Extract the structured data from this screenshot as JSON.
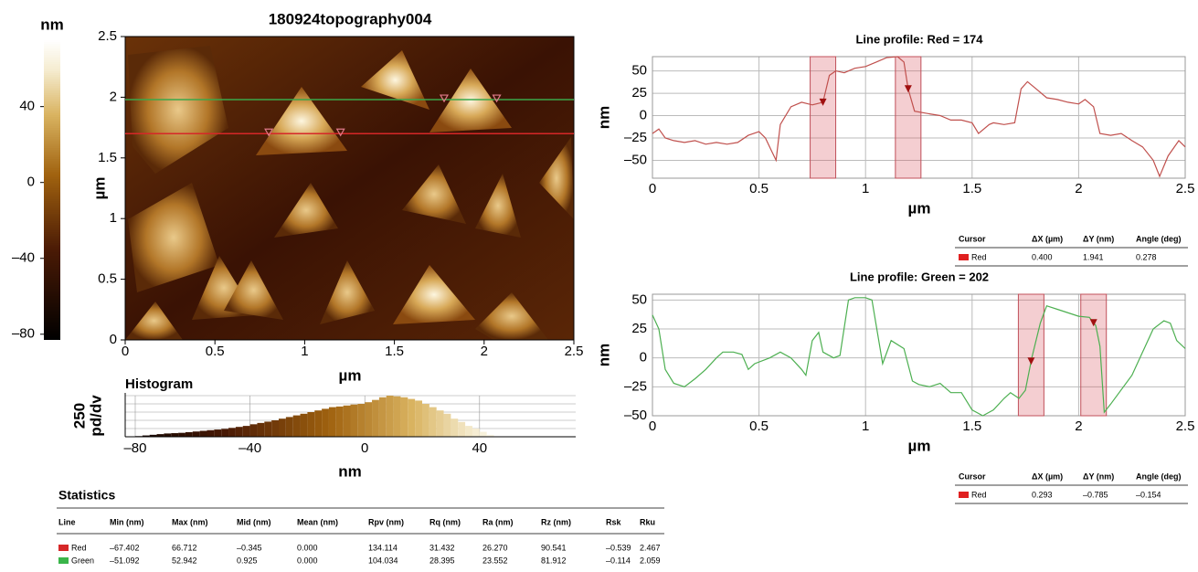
{
  "chart_data": [
    {
      "type": "image",
      "title": "180924topography004",
      "xlabel": "µm",
      "ylabel": "µm",
      "xlim": [
        0,
        2.5
      ],
      "ylim": [
        0,
        2.5
      ],
      "xticks": [
        0,
        0.5,
        1,
        1.5,
        2,
        2.5
      ],
      "yticks": [
        0,
        0.5,
        1,
        1.5,
        2,
        2.5
      ],
      "colorbar_label": "nm",
      "clim": [
        -83,
        75
      ],
      "colorbar_ticks": [
        {
          "value": 40,
          "label": "40"
        },
        0,
        {
          "value": -40,
          "label": "–40"
        },
        {
          "value": -80,
          "label": "–80"
        }
      ],
      "lines": [
        {
          "y": 1.98,
          "color": "#3aa84a"
        },
        {
          "y": 1.7,
          "color": "#d62728"
        }
      ]
    },
    {
      "type": "histogram",
      "title": "Histogram",
      "xlabel": "nm",
      "ylabel": [
        "250",
        "pd/dv"
      ],
      "xlim": [
        -83.5,
        73.5
      ],
      "ylim": [
        0,
        1250
      ],
      "yticks": [
        0,
        250,
        500,
        750,
        1000,
        1250
      ],
      "xticks": [
        {
          "value": -80,
          "label": "–80"
        },
        {
          "value": -40,
          "label": "–40"
        },
        0,
        40
      ],
      "bins": [
        -80,
        -77.5,
        -75,
        -72.5,
        -70,
        -67.5,
        -65,
        -62.5,
        -60,
        -57.5,
        -55,
        -52.5,
        -50,
        -47.5,
        -45,
        -42.5,
        -40,
        -37.5,
        -35,
        -32.5,
        -30,
        -27.5,
        -25,
        -22.5,
        -20,
        -17.5,
        -15,
        -12.5,
        -10,
        -7.5,
        -5,
        -2.5,
        0,
        2.5,
        5,
        7.5,
        10,
        12.5,
        15,
        17.5,
        20,
        22.5,
        25,
        27.5,
        30,
        32.5,
        35,
        37.5,
        40,
        42.5,
        45
      ],
      "values": [
        20,
        40,
        60,
        80,
        100,
        110,
        120,
        140,
        160,
        180,
        200,
        220,
        240,
        270,
        300,
        330,
        380,
        420,
        460,
        500,
        550,
        600,
        650,
        700,
        750,
        800,
        850,
        900,
        920,
        950,
        980,
        1000,
        1050,
        1120,
        1200,
        1250,
        1230,
        1200,
        1150,
        1100,
        1000,
        900,
        800,
        700,
        550,
        450,
        330,
        250,
        150,
        60
      ]
    },
    {
      "type": "line",
      "title": "Line profile: Red = 174",
      "xlabel": "µm",
      "ylabel": "nm",
      "color": "#c0504d",
      "xlim": [
        0,
        2.5
      ],
      "ylim": [
        -70,
        66
      ],
      "xticks": [
        0,
        0.5,
        1,
        1.5,
        2,
        2.5
      ],
      "yticks": [
        {
          "value": -50,
          "label": "–50"
        },
        {
          "value": -25,
          "label": "–25"
        },
        0,
        25,
        50
      ],
      "cursors": [
        0.8,
        1.2
      ],
      "cursor_width": 0.12,
      "grid": true,
      "x": [
        0,
        0.03,
        0.06,
        0.1,
        0.15,
        0.2,
        0.25,
        0.3,
        0.35,
        0.4,
        0.45,
        0.5,
        0.53,
        0.56,
        0.58,
        0.6,
        0.65,
        0.7,
        0.75,
        0.8,
        0.83,
        0.86,
        0.9,
        0.95,
        1.0,
        1.05,
        1.1,
        1.15,
        1.18,
        1.2,
        1.23,
        1.3,
        1.35,
        1.4,
        1.45,
        1.5,
        1.53,
        1.58,
        1.6,
        1.65,
        1.7,
        1.73,
        1.76,
        1.8,
        1.85,
        1.9,
        1.95,
        2.0,
        2.03,
        2.07,
        2.1,
        2.15,
        2.2,
        2.25,
        2.3,
        2.35,
        2.38,
        2.42,
        2.47,
        2.5
      ],
      "values": [
        -20,
        -15,
        -25,
        -28,
        -30,
        -28,
        -32,
        -30,
        -32,
        -30,
        -22,
        -18,
        -25,
        -40,
        -50,
        -10,
        10,
        15,
        12,
        15,
        45,
        50,
        48,
        53,
        55,
        60,
        65,
        66,
        60,
        30,
        5,
        2,
        0,
        -5,
        -5,
        -8,
        -20,
        -10,
        -8,
        -10,
        -8,
        30,
        38,
        30,
        20,
        18,
        15,
        13,
        18,
        10,
        -20,
        -22,
        -20,
        -28,
        -35,
        -50,
        -68,
        -45,
        -28,
        -35
      ],
      "cursor_table": {
        "header": [
          "Cursor",
          "ΔX (µm)",
          "ΔY (nm)",
          "Angle (deg)"
        ],
        "rows": [
          [
            "Red",
            "0.400",
            "1.941",
            "0.278"
          ]
        ]
      }
    },
    {
      "type": "line",
      "title": "Line profile: Green = 202",
      "xlabel": "µm",
      "ylabel": "nm",
      "color": "#4caf50",
      "xlim": [
        0,
        2.5
      ],
      "ylim": [
        -50,
        55
      ],
      "xticks": [
        0,
        0.5,
        1,
        1.5,
        2,
        2.5
      ],
      "yticks": [
        {
          "value": -50,
          "label": "–50"
        },
        {
          "value": -25,
          "label": "–25"
        },
        0,
        25,
        50
      ],
      "cursors": [
        1.777,
        2.07
      ],
      "cursor_width": 0.12,
      "grid": true,
      "x": [
        0,
        0.03,
        0.06,
        0.1,
        0.15,
        0.2,
        0.25,
        0.3,
        0.33,
        0.38,
        0.42,
        0.45,
        0.48,
        0.55,
        0.6,
        0.65,
        0.7,
        0.72,
        0.75,
        0.78,
        0.8,
        0.85,
        0.88,
        0.92,
        0.95,
        1.0,
        1.03,
        1.08,
        1.12,
        1.18,
        1.22,
        1.25,
        1.3,
        1.35,
        1.4,
        1.45,
        1.5,
        1.55,
        1.6,
        1.65,
        1.68,
        1.72,
        1.75,
        1.78,
        1.82,
        1.85,
        1.9,
        2.0,
        2.05,
        2.08,
        2.1,
        2.12,
        2.15,
        2.25,
        2.3,
        2.35,
        2.4,
        2.43,
        2.46,
        2.5
      ],
      "values": [
        37,
        25,
        -10,
        -22,
        -25,
        -18,
        -10,
        0,
        5,
        5,
        3,
        -10,
        -5,
        0,
        5,
        0,
        -10,
        -15,
        15,
        22,
        5,
        0,
        2,
        50,
        52,
        52,
        50,
        -5,
        15,
        8,
        -20,
        -23,
        -25,
        -22,
        -30,
        -30,
        -45,
        -50,
        -45,
        -35,
        -30,
        -35,
        -28,
        0,
        30,
        45,
        42,
        36,
        35,
        28,
        10,
        -47,
        -40,
        -15,
        5,
        25,
        32,
        30,
        15,
        8
      ],
      "cursor_table": {
        "header": [
          "Cursor",
          "ΔX (µm)",
          "ΔY (nm)",
          "Angle (deg)"
        ],
        "rows": [
          [
            "Red",
            "0.293",
            "–0.785",
            "–0.154"
          ]
        ]
      }
    }
  ],
  "statistics": {
    "title": "Statistics",
    "header": [
      "Line",
      "Min (nm)",
      "Max (nm)",
      "Mid (nm)",
      "Mean (nm)",
      "Rpv (nm)",
      "Rq (nm)",
      "Ra (nm)",
      "Rz (nm)",
      "Rsk",
      "Rku"
    ],
    "rows": [
      {
        "color": "#d62728",
        "cells": [
          "Red",
          "–67.402",
          "66.712",
          "–0.345",
          "0.000",
          "134.114",
          "31.432",
          "26.270",
          "90.541",
          "–0.539",
          "2.467"
        ]
      },
      {
        "color": "#3ab54a",
        "cells": [
          "Green",
          "–51.092",
          "52.942",
          "0.925",
          "0.000",
          "104.034",
          "28.395",
          "23.552",
          "81.912",
          "–0.114",
          "2.059"
        ]
      }
    ]
  }
}
